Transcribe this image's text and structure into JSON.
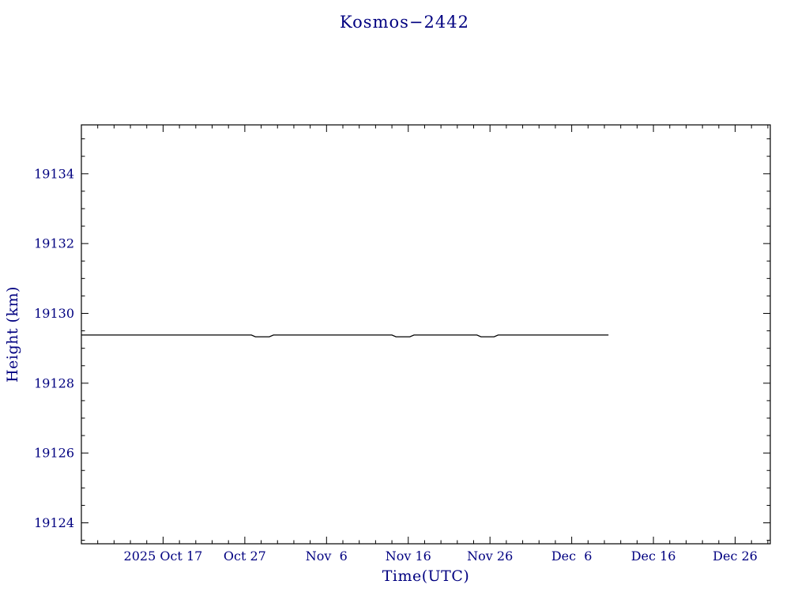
{
  "chart_data": {
    "type": "line",
    "title": "Kosmos−2442",
    "xlabel": "Time(UTC)",
    "ylabel": "Height (km)",
    "x_unit": "days since 2025 Oct 7",
    "xlim": [
      0,
      84.3
    ],
    "ylim": [
      19123.4,
      19135.4
    ],
    "grid": false,
    "legend": "none",
    "x_ticks": [
      {
        "pos": 10,
        "label": "2025 Oct 17"
      },
      {
        "pos": 20,
        "label": "Oct 27"
      },
      {
        "pos": 30,
        "label": "Nov  6"
      },
      {
        "pos": 40,
        "label": "Nov 16"
      },
      {
        "pos": 50,
        "label": "Nov 26"
      },
      {
        "pos": 60,
        "label": "Dec  6"
      },
      {
        "pos": 70,
        "label": "Dec 16"
      },
      {
        "pos": 80,
        "label": "Dec 26"
      }
    ],
    "y_ticks": [
      {
        "pos": 19124,
        "label": "19124"
      },
      {
        "pos": 19126,
        "label": "19126"
      },
      {
        "pos": 19128,
        "label": "19128"
      },
      {
        "pos": 19130,
        "label": "19130"
      },
      {
        "pos": 19132,
        "label": "19132"
      },
      {
        "pos": 19134,
        "label": "19134"
      }
    ],
    "x_minor_step": 2,
    "y_minor_step": 0.5,
    "series": [
      {
        "name": "height",
        "color": "#000000",
        "points": [
          [
            0.0,
            19129.38
          ],
          [
            20.8,
            19129.38
          ],
          [
            21.3,
            19129.33
          ],
          [
            23.0,
            19129.33
          ],
          [
            23.5,
            19129.38
          ],
          [
            38.0,
            19129.38
          ],
          [
            38.5,
            19129.33
          ],
          [
            40.2,
            19129.33
          ],
          [
            40.7,
            19129.38
          ],
          [
            48.4,
            19129.38
          ],
          [
            48.9,
            19129.33
          ],
          [
            50.5,
            19129.33
          ],
          [
            51.0,
            19129.38
          ],
          [
            64.5,
            19129.38
          ]
        ]
      }
    ],
    "colors": {
      "text": "#000080",
      "frame": "#000000",
      "line": "#000000",
      "background": "#ffffff"
    }
  }
}
